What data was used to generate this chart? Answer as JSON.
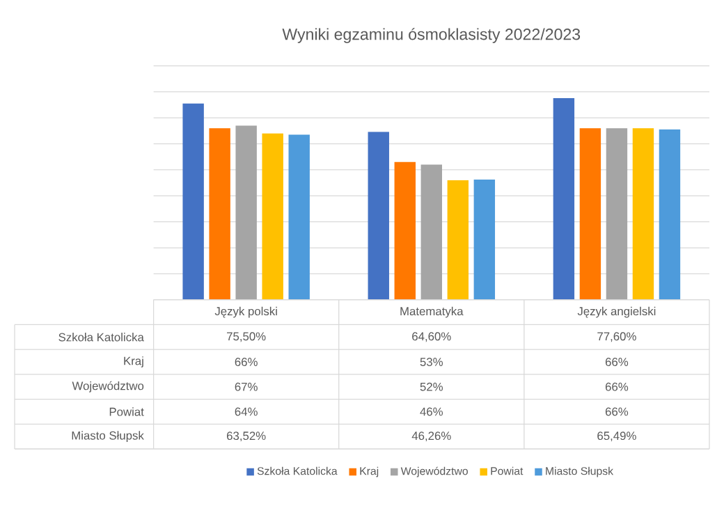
{
  "chart_data": {
    "type": "bar",
    "title": "Wyniki egzaminu ósmoklasisty 2022/2023",
    "categories": [
      "Język polski",
      "Matematyka",
      "Język angielski"
    ],
    "series": [
      {
        "name": "Szkoła Katolicka",
        "color": "#4472c4",
        "values": [
          75.5,
          64.6,
          77.6
        ],
        "value_labels": [
          "75,50%",
          "64,60%",
          "77,60%"
        ]
      },
      {
        "name": "Kraj",
        "color": "#ff7800",
        "values": [
          66,
          53,
          66
        ],
        "value_labels": [
          "66%",
          "53%",
          "66%"
        ]
      },
      {
        "name": "Województwo",
        "color": "#a5a5a5",
        "values": [
          67,
          52,
          66
        ],
        "value_labels": [
          "67%",
          "52%",
          "66%"
        ]
      },
      {
        "name": "Powiat",
        "color": "#ffc000",
        "values": [
          64,
          46,
          66
        ],
        "value_labels": [
          "64%",
          "46%",
          "66%"
        ]
      },
      {
        "name": "Miasto Słupsk",
        "color": "#4e9bdb",
        "values": [
          63.52,
          46.26,
          65.49
        ],
        "value_labels": [
          "63,52%",
          "46,26%",
          "65,49%"
        ]
      }
    ],
    "ylim": [
      0,
      90
    ],
    "yticks": [
      {
        "value": 0,
        "label": null
      },
      {
        "value": 10,
        "label": null
      },
      {
        "value": 20,
        "label": null
      },
      {
        "value": 30,
        "label": null
      },
      {
        "value": 40,
        "label": null
      },
      {
        "value": 50,
        "label": null
      },
      {
        "value": 60,
        "label": null
      },
      {
        "value": 70,
        "label": null
      },
      {
        "value": 80,
        "label": null
      },
      {
        "value": 90,
        "label": null
      }
    ],
    "tick_labels": "x",
    "grid": "y",
    "legend": "bottom"
  }
}
